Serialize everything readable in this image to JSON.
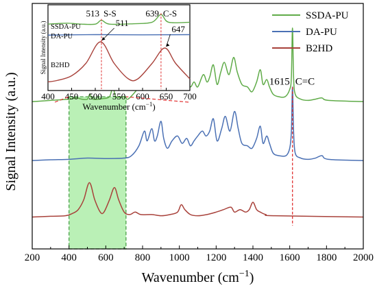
{
  "chart_data": {
    "type": "line",
    "xlabel": "Wavenumber (cm",
    "xlabel_sup": "−1",
    "xlabel_close": ")",
    "ylabel": "Signal Intensity (a.u.)",
    "xlim": [
      200,
      2000
    ],
    "x_ticks": [
      "200",
      "400",
      "600",
      "800",
      "1000",
      "1200",
      "1400",
      "1600",
      "1800",
      "2000"
    ],
    "legend": {
      "placement": "top-right",
      "entries": [
        "SSDA-PU",
        "DA-PU",
        "B2HD"
      ]
    },
    "series": [
      {
        "name": "SSDA-PU",
        "color": "#5fab48",
        "offset": 0.6,
        "points": [
          [
            200,
            0
          ],
          [
            300,
            0.005
          ],
          [
            400,
            0.01
          ],
          [
            440,
            0.015
          ],
          [
            470,
            0.01
          ],
          [
            500,
            0.01
          ],
          [
            513,
            0.03
          ],
          [
            530,
            0.01
          ],
          [
            580,
            0.012
          ],
          [
            620,
            0.02
          ],
          [
            639,
            0.06
          ],
          [
            655,
            0.02
          ],
          [
            700,
            0.02
          ],
          [
            720,
            0.01
          ],
          [
            760,
            0.04
          ],
          [
            790,
            0.07
          ],
          [
            810,
            0.1
          ],
          [
            825,
            0.08
          ],
          [
            850,
            0.12
          ],
          [
            865,
            0.08
          ],
          [
            880,
            0.1
          ],
          [
            900,
            0.14
          ],
          [
            915,
            0.09
          ],
          [
            940,
            0.05
          ],
          [
            970,
            0.08
          ],
          [
            995,
            0.1
          ],
          [
            1020,
            0.07
          ],
          [
            1040,
            0.09
          ],
          [
            1060,
            0.06
          ],
          [
            1080,
            0.08
          ],
          [
            1100,
            0.06
          ],
          [
            1130,
            0.11
          ],
          [
            1150,
            0.08
          ],
          [
            1165,
            0.1
          ],
          [
            1185,
            0.15
          ],
          [
            1205,
            0.07
          ],
          [
            1225,
            0.12
          ],
          [
            1245,
            0.16
          ],
          [
            1270,
            0.11
          ],
          [
            1295,
            0.18
          ],
          [
            1315,
            0.12
          ],
          [
            1340,
            0.07
          ],
          [
            1370,
            0.06
          ],
          [
            1395,
            0.04
          ],
          [
            1420,
            0.08
          ],
          [
            1440,
            0.13
          ],
          [
            1455,
            0.07
          ],
          [
            1475,
            0.09
          ],
          [
            1490,
            0.06
          ],
          [
            1510,
            0.03
          ],
          [
            1540,
            0.02
          ],
          [
            1575,
            0.02
          ],
          [
            1600,
            0.05
          ],
          [
            1609,
            0.1
          ],
          [
            1615,
            0.3
          ],
          [
            1621,
            0.1
          ],
          [
            1630,
            0.03
          ],
          [
            1660,
            0.01
          ],
          [
            1700,
            0.005
          ],
          [
            1740,
            0.01
          ],
          [
            1775,
            0.015
          ],
          [
            1810,
            0.005
          ],
          [
            2000,
            0
          ]
        ]
      },
      {
        "name": "DA-PU",
        "color": "#4a70b4",
        "offset": 0.36,
        "points": [
          [
            200,
            0
          ],
          [
            300,
            0.003
          ],
          [
            400,
            0.005
          ],
          [
            500,
            0.01
          ],
          [
            600,
            0.008
          ],
          [
            700,
            0.01
          ],
          [
            740,
            0.02
          ],
          [
            780,
            0.06
          ],
          [
            810,
            0.12
          ],
          [
            825,
            0.08
          ],
          [
            850,
            0.13
          ],
          [
            865,
            0.08
          ],
          [
            880,
            0.1
          ],
          [
            900,
            0.16
          ],
          [
            915,
            0.09
          ],
          [
            935,
            0.05
          ],
          [
            960,
            0.08
          ],
          [
            990,
            0.1
          ],
          [
            1015,
            0.07
          ],
          [
            1040,
            0.09
          ],
          [
            1060,
            0.06
          ],
          [
            1080,
            0.08
          ],
          [
            1100,
            0.1
          ],
          [
            1125,
            0.12
          ],
          [
            1145,
            0.1
          ],
          [
            1165,
            0.12
          ],
          [
            1185,
            0.17
          ],
          [
            1205,
            0.08
          ],
          [
            1230,
            0.13
          ],
          [
            1250,
            0.18
          ],
          [
            1275,
            0.12
          ],
          [
            1300,
            0.2
          ],
          [
            1320,
            0.13
          ],
          [
            1340,
            0.07
          ],
          [
            1370,
            0.06
          ],
          [
            1395,
            0.05
          ],
          [
            1420,
            0.09
          ],
          [
            1440,
            0.14
          ],
          [
            1455,
            0.07
          ],
          [
            1475,
            0.1
          ],
          [
            1490,
            0.07
          ],
          [
            1510,
            0.03
          ],
          [
            1540,
            0.02
          ],
          [
            1580,
            0.02
          ],
          [
            1600,
            0.05
          ],
          [
            1609,
            0.12
          ],
          [
            1615,
            0.3
          ],
          [
            1621,
            0.12
          ],
          [
            1630,
            0.03
          ],
          [
            1660,
            0.01
          ],
          [
            1700,
            0.005
          ],
          [
            1740,
            0.01
          ],
          [
            1775,
            0.02
          ],
          [
            1810,
            0.005
          ],
          [
            2000,
            0
          ]
        ]
      },
      {
        "name": "B2HD",
        "color": "#a8413a",
        "offset": 0.13,
        "points": [
          [
            200,
            0
          ],
          [
            300,
            0.003
          ],
          [
            380,
            0.005
          ],
          [
            420,
            0.015
          ],
          [
            450,
            0.03
          ],
          [
            480,
            0.07
          ],
          [
            511,
            0.14
          ],
          [
            540,
            0.07
          ],
          [
            570,
            0.02
          ],
          [
            590,
            0.02
          ],
          [
            620,
            0.07
          ],
          [
            647,
            0.12
          ],
          [
            670,
            0.07
          ],
          [
            700,
            0.02
          ],
          [
            730,
            0.01
          ],
          [
            760,
            0.02
          ],
          [
            790,
            0.01
          ],
          [
            850,
            0.01
          ],
          [
            900,
            0.005
          ],
          [
            950,
            0.01
          ],
          [
            990,
            0.02
          ],
          [
            1010,
            0.05
          ],
          [
            1030,
            0.03
          ],
          [
            1060,
            0.01
          ],
          [
            1100,
            0.005
          ],
          [
            1150,
            0.01
          ],
          [
            1200,
            0.02
          ],
          [
            1240,
            0.03
          ],
          [
            1280,
            0.04
          ],
          [
            1300,
            0.02
          ],
          [
            1330,
            0.03
          ],
          [
            1360,
            0.02
          ],
          [
            1380,
            0.03
          ],
          [
            1400,
            0.06
          ],
          [
            1420,
            0.03
          ],
          [
            1440,
            0.02
          ],
          [
            1470,
            0.01
          ],
          [
            1520,
            0.005
          ],
          [
            2000,
            0
          ]
        ]
      }
    ],
    "highlight": {
      "x_range": [
        400,
        710
      ],
      "color": "#8ce686"
    },
    "peak_annotation": {
      "x": 1615,
      "value": "1615",
      "label": "C=C"
    },
    "inset": {
      "xlim": [
        400,
        700
      ],
      "x_ticks": [
        "400",
        "450",
        "500",
        "550",
        "600",
        "650",
        "700"
      ],
      "xlabel": "Wavenumber (cm",
      "xlabel_sup": "−1",
      "xlabel_close": ")",
      "ylabel": "Signal Intensity (a.u.)",
      "series_labels": [
        "SSDA-PU",
        "DA-PU",
        "B2HD"
      ],
      "annotations": [
        {
          "series": "SSDA-PU",
          "x": 513,
          "value": "513",
          "label": "S-S"
        },
        {
          "series": "SSDA-PU",
          "x": 639,
          "value": "639",
          "label": "C-S"
        },
        {
          "series": "B2HD",
          "x": 511,
          "value": "511"
        },
        {
          "series": "B2HD",
          "x": 647,
          "value": "647"
        }
      ]
    }
  }
}
